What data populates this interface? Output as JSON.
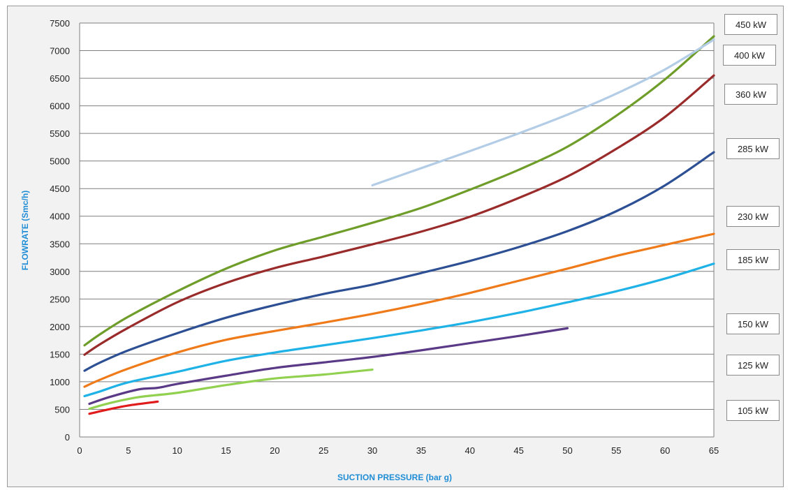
{
  "chart_data": {
    "type": "line",
    "title": "",
    "xlabel": "SUCTION PRESSURE  (bar g)",
    "ylabel": "FLOWRATE (Smc/h)",
    "xlim": [
      0,
      65
    ],
    "ylim": [
      0,
      7500
    ],
    "xticks": [
      0,
      5,
      10,
      15,
      20,
      25,
      30,
      35,
      40,
      45,
      50,
      55,
      60,
      65
    ],
    "yticks": [
      0,
      500,
      1000,
      1500,
      2000,
      2500,
      3000,
      3500,
      4000,
      4500,
      5000,
      5500,
      6000,
      6500,
      7000,
      7500
    ],
    "grid": "horizontal",
    "legend": "right",
    "series": [
      {
        "name": "450 kW",
        "color": "#b4cde6",
        "x": [
          30,
          35,
          40,
          45,
          50,
          55,
          60,
          65
        ],
        "y": [
          4560,
          4870,
          5180,
          5500,
          5840,
          6220,
          6660,
          7200
        ]
      },
      {
        "name": "400 kW",
        "color": "#6f9d2a",
        "x": [
          0.5,
          2,
          5,
          10,
          15,
          20,
          25,
          30,
          35,
          40,
          45,
          50,
          55,
          60,
          65
        ],
        "y": [
          1660,
          1850,
          2180,
          2640,
          3050,
          3380,
          3630,
          3880,
          4150,
          4480,
          4840,
          5260,
          5820,
          6480,
          7260
        ]
      },
      {
        "name": "360 kW",
        "color": "#9a2b2b",
        "x": [
          0.5,
          2,
          5,
          10,
          15,
          20,
          25,
          30,
          35,
          40,
          45,
          50,
          55,
          60,
          65
        ],
        "y": [
          1490,
          1670,
          1980,
          2440,
          2790,
          3060,
          3270,
          3490,
          3720,
          3990,
          4330,
          4720,
          5220,
          5800,
          6550
        ]
      },
      {
        "name": "285 kW",
        "color": "#2d4f93",
        "x": [
          0.5,
          2,
          5,
          10,
          15,
          20,
          25,
          30,
          35,
          40,
          45,
          50,
          55,
          60,
          65
        ],
        "y": [
          1200,
          1340,
          1570,
          1880,
          2160,
          2390,
          2590,
          2760,
          2970,
          3190,
          3440,
          3730,
          4090,
          4560,
          5160
        ]
      },
      {
        "name": "230 kW",
        "color": "#ef7a1a",
        "x": [
          0.5,
          2,
          5,
          10,
          15,
          20,
          25,
          30,
          35,
          40,
          45,
          50,
          55,
          60,
          65
        ],
        "y": [
          910,
          1030,
          1240,
          1530,
          1760,
          1920,
          2070,
          2230,
          2410,
          2610,
          2830,
          3050,
          3280,
          3480,
          3680
        ]
      },
      {
        "name": "185 kW",
        "color": "#1fb2e6",
        "x": [
          0.5,
          2,
          5,
          10,
          15,
          20,
          25,
          30,
          35,
          40,
          45,
          50,
          55,
          60,
          65
        ],
        "y": [
          740,
          820,
          990,
          1180,
          1380,
          1530,
          1660,
          1790,
          1930,
          2080,
          2250,
          2440,
          2640,
          2870,
          3140
        ]
      },
      {
        "name": "150 kW",
        "color": "#5a3a86",
        "x": [
          1,
          3,
          6,
          8,
          10,
          15,
          20,
          25,
          30,
          35,
          40,
          45,
          50
        ],
        "y": [
          600,
          720,
          860,
          890,
          960,
          1110,
          1250,
          1350,
          1450,
          1570,
          1700,
          1830,
          1970
        ]
      },
      {
        "name": "125 kW",
        "color": "#92d050",
        "x": [
          1,
          3,
          6,
          10,
          15,
          20,
          25,
          30
        ],
        "y": [
          510,
          610,
          720,
          800,
          940,
          1060,
          1130,
          1220
        ]
      },
      {
        "name": "105 kW",
        "color": "#e01b1b",
        "x": [
          1,
          3,
          5,
          8
        ],
        "y": [
          420,
          500,
          570,
          640
        ]
      }
    ]
  }
}
